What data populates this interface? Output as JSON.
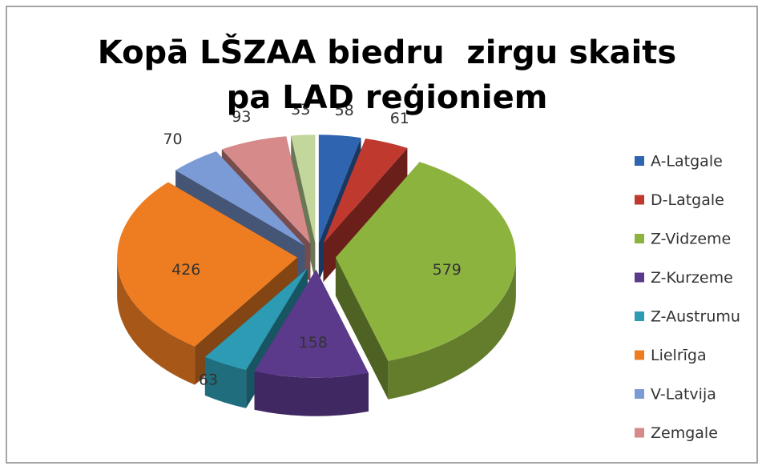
{
  "chart_data": {
    "type": "pie",
    "title": "Kopā LŠZAA biedru  zirgu skaits pa LAD reģioniem",
    "categories": [
      "A-Latgale",
      "D-Latgale",
      "Z-Vidzeme",
      "Z-Kurzeme",
      "Z-Austrumu",
      "Lielrīga",
      "V-Latvija",
      "Zemgale",
      null
    ],
    "values": [
      58,
      61,
      579,
      158,
      63,
      426,
      70,
      93,
      33
    ],
    "colors": [
      "#2e64b0",
      "#c0392f",
      "#8db33f",
      "#5b3a8c",
      "#2c9bb3",
      "#ee7d22",
      "#7b9bd6",
      "#d68a8a",
      "#c3d69b"
    ],
    "legend": "right"
  }
}
